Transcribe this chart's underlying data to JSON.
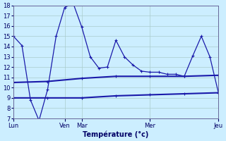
{
  "background_color": "#cceeff",
  "grid_color": "#aacccc",
  "line_color": "#1a1aaa",
  "ylabel": "Température (°c)",
  "ylim": [
    7,
    18
  ],
  "yticks": [
    7,
    8,
    9,
    10,
    11,
    12,
    13,
    14,
    15,
    16,
    17,
    18
  ],
  "xlim": [
    0,
    24
  ],
  "x_tick_positions": [
    0,
    6,
    8,
    16,
    24
  ],
  "x_tick_labels": [
    "Lun",
    "Ven",
    "Mar",
    "Mer",
    "Jeu"
  ],
  "series1_x": [
    0,
    1,
    2,
    3,
    4,
    5,
    6,
    7,
    8,
    9,
    10,
    11,
    12,
    13,
    14,
    15,
    16,
    17,
    18,
    19,
    20,
    21,
    22,
    23,
    24
  ],
  "series1_y": [
    15.0,
    14.1,
    8.8,
    6.8,
    9.8,
    15.0,
    17.8,
    18.2,
    15.9,
    13.0,
    11.9,
    12.0,
    14.6,
    13.0,
    12.2,
    11.6,
    11.5,
    11.5,
    11.3,
    11.3,
    11.1,
    13.1,
    15.0,
    13.0,
    9.5
  ],
  "series2_x": [
    0,
    4,
    8,
    12,
    16,
    20,
    24
  ],
  "series2_y": [
    10.5,
    10.6,
    10.9,
    11.1,
    11.1,
    11.1,
    11.2
  ],
  "series3_x": [
    0,
    4,
    8,
    12,
    16,
    20,
    24
  ],
  "series3_y": [
    9.0,
    9.0,
    9.0,
    9.2,
    9.3,
    9.4,
    9.5
  ]
}
